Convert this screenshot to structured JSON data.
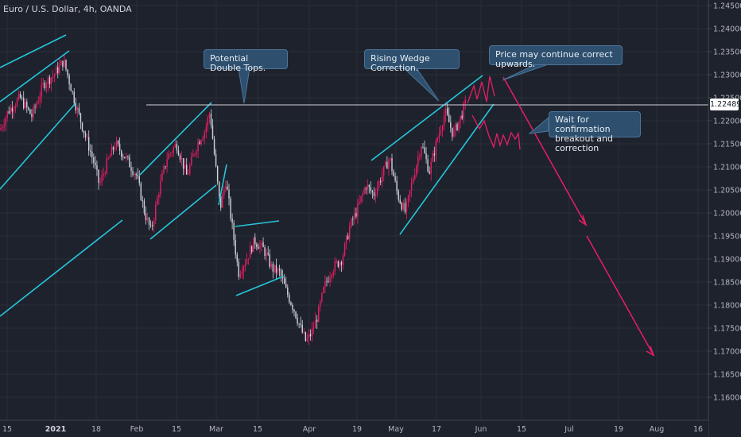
{
  "header": {
    "symbol": "Euro / U.S. Dollar, 4h, OANDA"
  },
  "annotations": {
    "double_tops": "Potential Double Tops.",
    "rising_wedge": "Rising Wedge Correction.",
    "continue_up": "Price may continue correct upwards.",
    "wait_line1": "Wait for confirmation",
    "wait_line2": "breakout and correction"
  },
  "current_price": "1.22489",
  "colors": {
    "background": "#1e222d",
    "up_candle": "#e91e63",
    "down_candle": "#d1d4dc",
    "trendline": "#26c6da",
    "projection": "#e91e63",
    "callout_bg": "#2e4f6e"
  },
  "chart_data": {
    "type": "candlestick",
    "title": "Euro / U.S. Dollar, 4h, OANDA",
    "ylim": [
      1.155,
      1.2462
    ],
    "y_ticks": [
      "1.24500",
      "1.24000",
      "1.23500",
      "1.23000",
      "1.22500",
      "1.22000",
      "1.21500",
      "1.21000",
      "1.20500",
      "1.20000",
      "1.19500",
      "1.19000",
      "1.18500",
      "1.18000",
      "1.17500",
      "1.17000",
      "1.16500",
      "1.16000"
    ],
    "x_ticks": [
      {
        "label": "15",
        "bold": false
      },
      {
        "label": "2021",
        "bold": true
      },
      {
        "label": "18",
        "bold": false
      },
      {
        "label": "Feb",
        "bold": false
      },
      {
        "label": "15",
        "bold": false
      },
      {
        "label": "Mar",
        "bold": false
      },
      {
        "label": "15",
        "bold": false
      },
      {
        "label": "Apr",
        "bold": false
      },
      {
        "label": "19",
        "bold": false
      },
      {
        "label": "May",
        "bold": false
      },
      {
        "label": "17",
        "bold": false
      },
      {
        "label": "Jun",
        "bold": false
      },
      {
        "label": "15",
        "bold": false
      },
      {
        "label": "Jul",
        "bold": false
      },
      {
        "label": "19",
        "bold": false
      },
      {
        "label": "Aug",
        "bold": false
      },
      {
        "label": "16",
        "bold": false
      }
    ],
    "price_path": [
      [
        0,
        1.218
      ],
      [
        10,
        1.222
      ],
      [
        25,
        1.225
      ],
      [
        40,
        1.221
      ],
      [
        55,
        1.228
      ],
      [
        68,
        1.23
      ],
      [
        80,
        1.233
      ],
      [
        88,
        1.228
      ],
      [
        96,
        1.223
      ],
      [
        105,
        1.218
      ],
      [
        118,
        1.211
      ],
      [
        125,
        1.206
      ],
      [
        135,
        1.211
      ],
      [
        145,
        1.215
      ],
      [
        158,
        1.212
      ],
      [
        172,
        1.208
      ],
      [
        182,
        1.2
      ],
      [
        190,
        1.196
      ],
      [
        200,
        1.205
      ],
      [
        210,
        1.212
      ],
      [
        222,
        1.215
      ],
      [
        235,
        1.208
      ],
      [
        248,
        1.215
      ],
      [
        258,
        1.218
      ],
      [
        264,
        1.222
      ],
      [
        270,
        1.212
      ],
      [
        277,
        1.201
      ],
      [
        284,
        1.207
      ],
      [
        292,
        1.197
      ],
      [
        300,
        1.187
      ],
      [
        310,
        1.19
      ],
      [
        320,
        1.194
      ],
      [
        332,
        1.192
      ],
      [
        342,
        1.188
      ],
      [
        352,
        1.187
      ],
      [
        360,
        1.183
      ],
      [
        370,
        1.179
      ],
      [
        378,
        1.175
      ],
      [
        385,
        1.172
      ],
      [
        392,
        1.174
      ],
      [
        400,
        1.178
      ],
      [
        408,
        1.184
      ],
      [
        418,
        1.188
      ],
      [
        430,
        1.19
      ],
      [
        440,
        1.197
      ],
      [
        450,
        1.201
      ],
      [
        460,
        1.206
      ],
      [
        470,
        1.204
      ],
      [
        480,
        1.208
      ],
      [
        490,
        1.212
      ],
      [
        500,
        1.204
      ],
      [
        510,
        1.2
      ],
      [
        520,
        1.208
      ],
      [
        530,
        1.215
      ],
      [
        540,
        1.209
      ],
      [
        550,
        1.216
      ],
      [
        560,
        1.222
      ],
      [
        570,
        1.217
      ],
      [
        580,
        1.221
      ],
      [
        586,
        1.224
      ]
    ],
    "lines": [
      {
        "name": "current-price-line",
        "value": 1.22489
      }
    ]
  }
}
